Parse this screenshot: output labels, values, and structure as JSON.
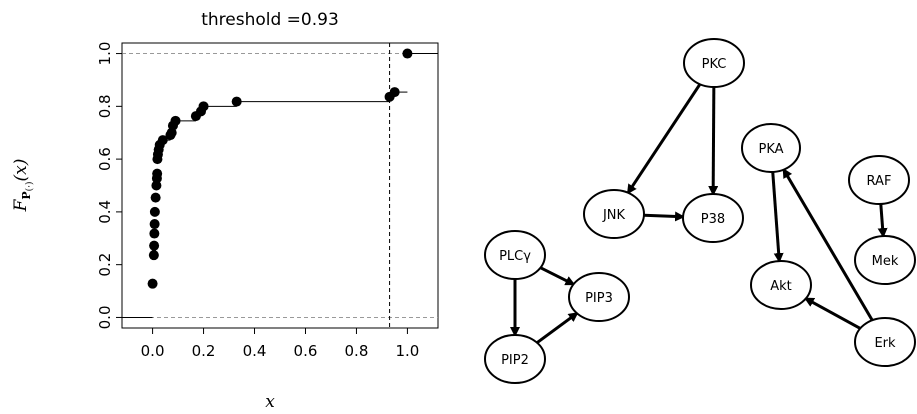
{
  "chart_data": {
    "type": "scatter",
    "title": "threshold =0.93",
    "xlabel": "x",
    "ylabel": "F_P(·)(x)",
    "xlim": [
      -0.12,
      1.12
    ],
    "ylim": [
      -0.04,
      1.04
    ],
    "xticks": [
      0.0,
      0.2,
      0.4,
      0.6,
      0.8,
      1.0
    ],
    "yticks": [
      0.0,
      0.2,
      0.4,
      0.6,
      0.8,
      1.0
    ],
    "xtick_labels": [
      "0.0",
      "0.2",
      "0.4",
      "0.6",
      "0.8",
      "1.0"
    ],
    "ytick_labels": [
      "0.0",
      "0.2",
      "0.4",
      "0.6",
      "0.8",
      "1.0"
    ],
    "threshold": 0.93,
    "reference_lines_y": [
      0.0,
      1.0
    ],
    "ecdf_points": [
      {
        "x": 0.0,
        "y": 0.128
      },
      {
        "x": 0.005,
        "y": 0.236
      },
      {
        "x": 0.006,
        "y": 0.272
      },
      {
        "x": 0.007,
        "y": 0.318
      },
      {
        "x": 0.008,
        "y": 0.354
      },
      {
        "x": 0.009,
        "y": 0.4
      },
      {
        "x": 0.012,
        "y": 0.454
      },
      {
        "x": 0.015,
        "y": 0.5
      },
      {
        "x": 0.017,
        "y": 0.527
      },
      {
        "x": 0.018,
        "y": 0.545
      },
      {
        "x": 0.019,
        "y": 0.6
      },
      {
        "x": 0.021,
        "y": 0.618
      },
      {
        "x": 0.024,
        "y": 0.636
      },
      {
        "x": 0.028,
        "y": 0.654
      },
      {
        "x": 0.04,
        "y": 0.672
      },
      {
        "x": 0.07,
        "y": 0.691
      },
      {
        "x": 0.075,
        "y": 0.7
      },
      {
        "x": 0.08,
        "y": 0.727
      },
      {
        "x": 0.09,
        "y": 0.745
      },
      {
        "x": 0.17,
        "y": 0.763
      },
      {
        "x": 0.19,
        "y": 0.781
      },
      {
        "x": 0.2,
        "y": 0.8
      },
      {
        "x": 0.33,
        "y": 0.818
      },
      {
        "x": 0.93,
        "y": 0.836
      },
      {
        "x": 0.95,
        "y": 0.854
      },
      {
        "x": 1.0,
        "y": 1.0
      }
    ],
    "graph": {
      "nodes": [
        "PKC",
        "PKA",
        "RAF",
        "JNK",
        "P38",
        "PLCγ",
        "PIP3",
        "PIP2",
        "Akt",
        "Mek",
        "Erk"
      ],
      "edges": [
        {
          "from": "PKC",
          "to": "JNK"
        },
        {
          "from": "PKC",
          "to": "P38"
        },
        {
          "from": "JNK",
          "to": "P38"
        },
        {
          "from": "PKA",
          "to": "Akt"
        },
        {
          "from": "RAF",
          "to": "Mek"
        },
        {
          "from": "Erk",
          "to": "PKA"
        },
        {
          "from": "Erk",
          "to": "Akt"
        },
        {
          "from": "PLCγ",
          "to": "PIP3"
        },
        {
          "from": "PLCγ",
          "to": "PIP2"
        },
        {
          "from": "PIP2",
          "to": "PIP3"
        }
      ]
    }
  }
}
